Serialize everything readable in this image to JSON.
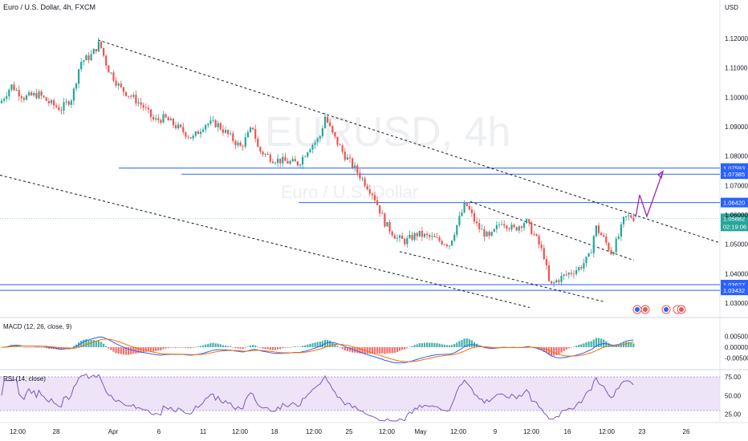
{
  "header": {
    "title": "Euro / U.S. Dollar, 4h, FXCM",
    "currency": "USD"
  },
  "watermark": {
    "symbol": "EURUSD, 4h",
    "name": "Euro / U.S. Dollar"
  },
  "price_axis": {
    "ticks": [
      "1.12000",
      "1.11000",
      "1.10000",
      "1.09000",
      "1.08000",
      "1.07000",
      "1.06000",
      "1.05000",
      "1.04000",
      "1.03000"
    ]
  },
  "levels": [
    {
      "label": "1.07593",
      "value": 1.07593,
      "color": "#2962ff"
    },
    {
      "label": "1.07385",
      "value": 1.07385,
      "color": "#2962ff"
    },
    {
      "label": "1.06420",
      "value": 1.0642,
      "color": "#2962ff"
    },
    {
      "label": "1.03627",
      "value": 1.03627,
      "color": "#2962ff"
    },
    {
      "label": "1.03432",
      "value": 1.03432,
      "color": "#2962ff"
    }
  ],
  "current_price": {
    "label": "1.05882",
    "countdown": "02:19:06",
    "color": "#26a69a"
  },
  "time_axis": {
    "ticks": [
      "12:00",
      "28",
      "Apr",
      "6",
      "11",
      "12:00",
      "18",
      "12:00",
      "25",
      "12:00",
      "May",
      "12:00",
      "9",
      "12:00",
      "16",
      "12:00",
      "23",
      "26"
    ]
  },
  "macd": {
    "label": "MACD (12, 26, close, 9)",
    "ticks": [
      "0.00500",
      "0.00000",
      "-0.00500"
    ],
    "macd_color": "#2962ff",
    "signal_color": "#ff6d00",
    "hist_up_color": "#26a69a",
    "hist_down_color": "#ef5350"
  },
  "rsi": {
    "label": "RSI (14, close)",
    "ticks": [
      "75.00",
      "50.00",
      "25.00"
    ],
    "line_color": "#7e57c2",
    "band_color": "#7e57c2"
  },
  "colors": {
    "up": "#26a69a",
    "down": "#ef5350",
    "projection": "#9c27b0",
    "trendline": "#131722"
  },
  "chart_data": {
    "type": "candlestick",
    "symbol": "EUR/USD",
    "interval": "4h",
    "ylim": [
      1.027,
      1.124
    ],
    "trendlines": [
      {
        "from": [
          1.1195
        ],
        "to": [
          1.0505
        ],
        "style": "dashed"
      },
      {
        "from": [
          1.0735
        ],
        "to": [
          1.0285
        ],
        "style": "dashed"
      },
      {
        "from": [
          1.0645
        ],
        "to": [
          1.0445
        ],
        "style": "dashed"
      },
      {
        "from": [
          1.0475
        ],
        "to": [
          1.0305
        ],
        "style": "dashed"
      }
    ],
    "projection_path": [
      1.0592,
      1.0668,
      1.0595,
      1.0748
    ],
    "key_closes": [
      {
        "period": "late March",
        "value": 1.098
      },
      {
        "period": "Mar 31 high",
        "value": 1.1185
      },
      {
        "period": "Apr 6",
        "value": 1.093
      },
      {
        "period": "Apr 11",
        "value": 1.086
      },
      {
        "period": "Apr 18",
        "value": 1.078
      },
      {
        "period": "Apr 21 high",
        "value": 1.0935
      },
      {
        "period": "Apr 25",
        "value": 1.066
      },
      {
        "period": "Apr 28",
        "value": 1.052
      },
      {
        "period": "May 5 high",
        "value": 1.064
      },
      {
        "period": "May 9",
        "value": 1.054
      },
      {
        "period": "May 13 low",
        "value": 1.0355
      },
      {
        "period": "May 18",
        "value": 1.052
      },
      {
        "period": "May 20",
        "value": 1.0588
      }
    ]
  }
}
